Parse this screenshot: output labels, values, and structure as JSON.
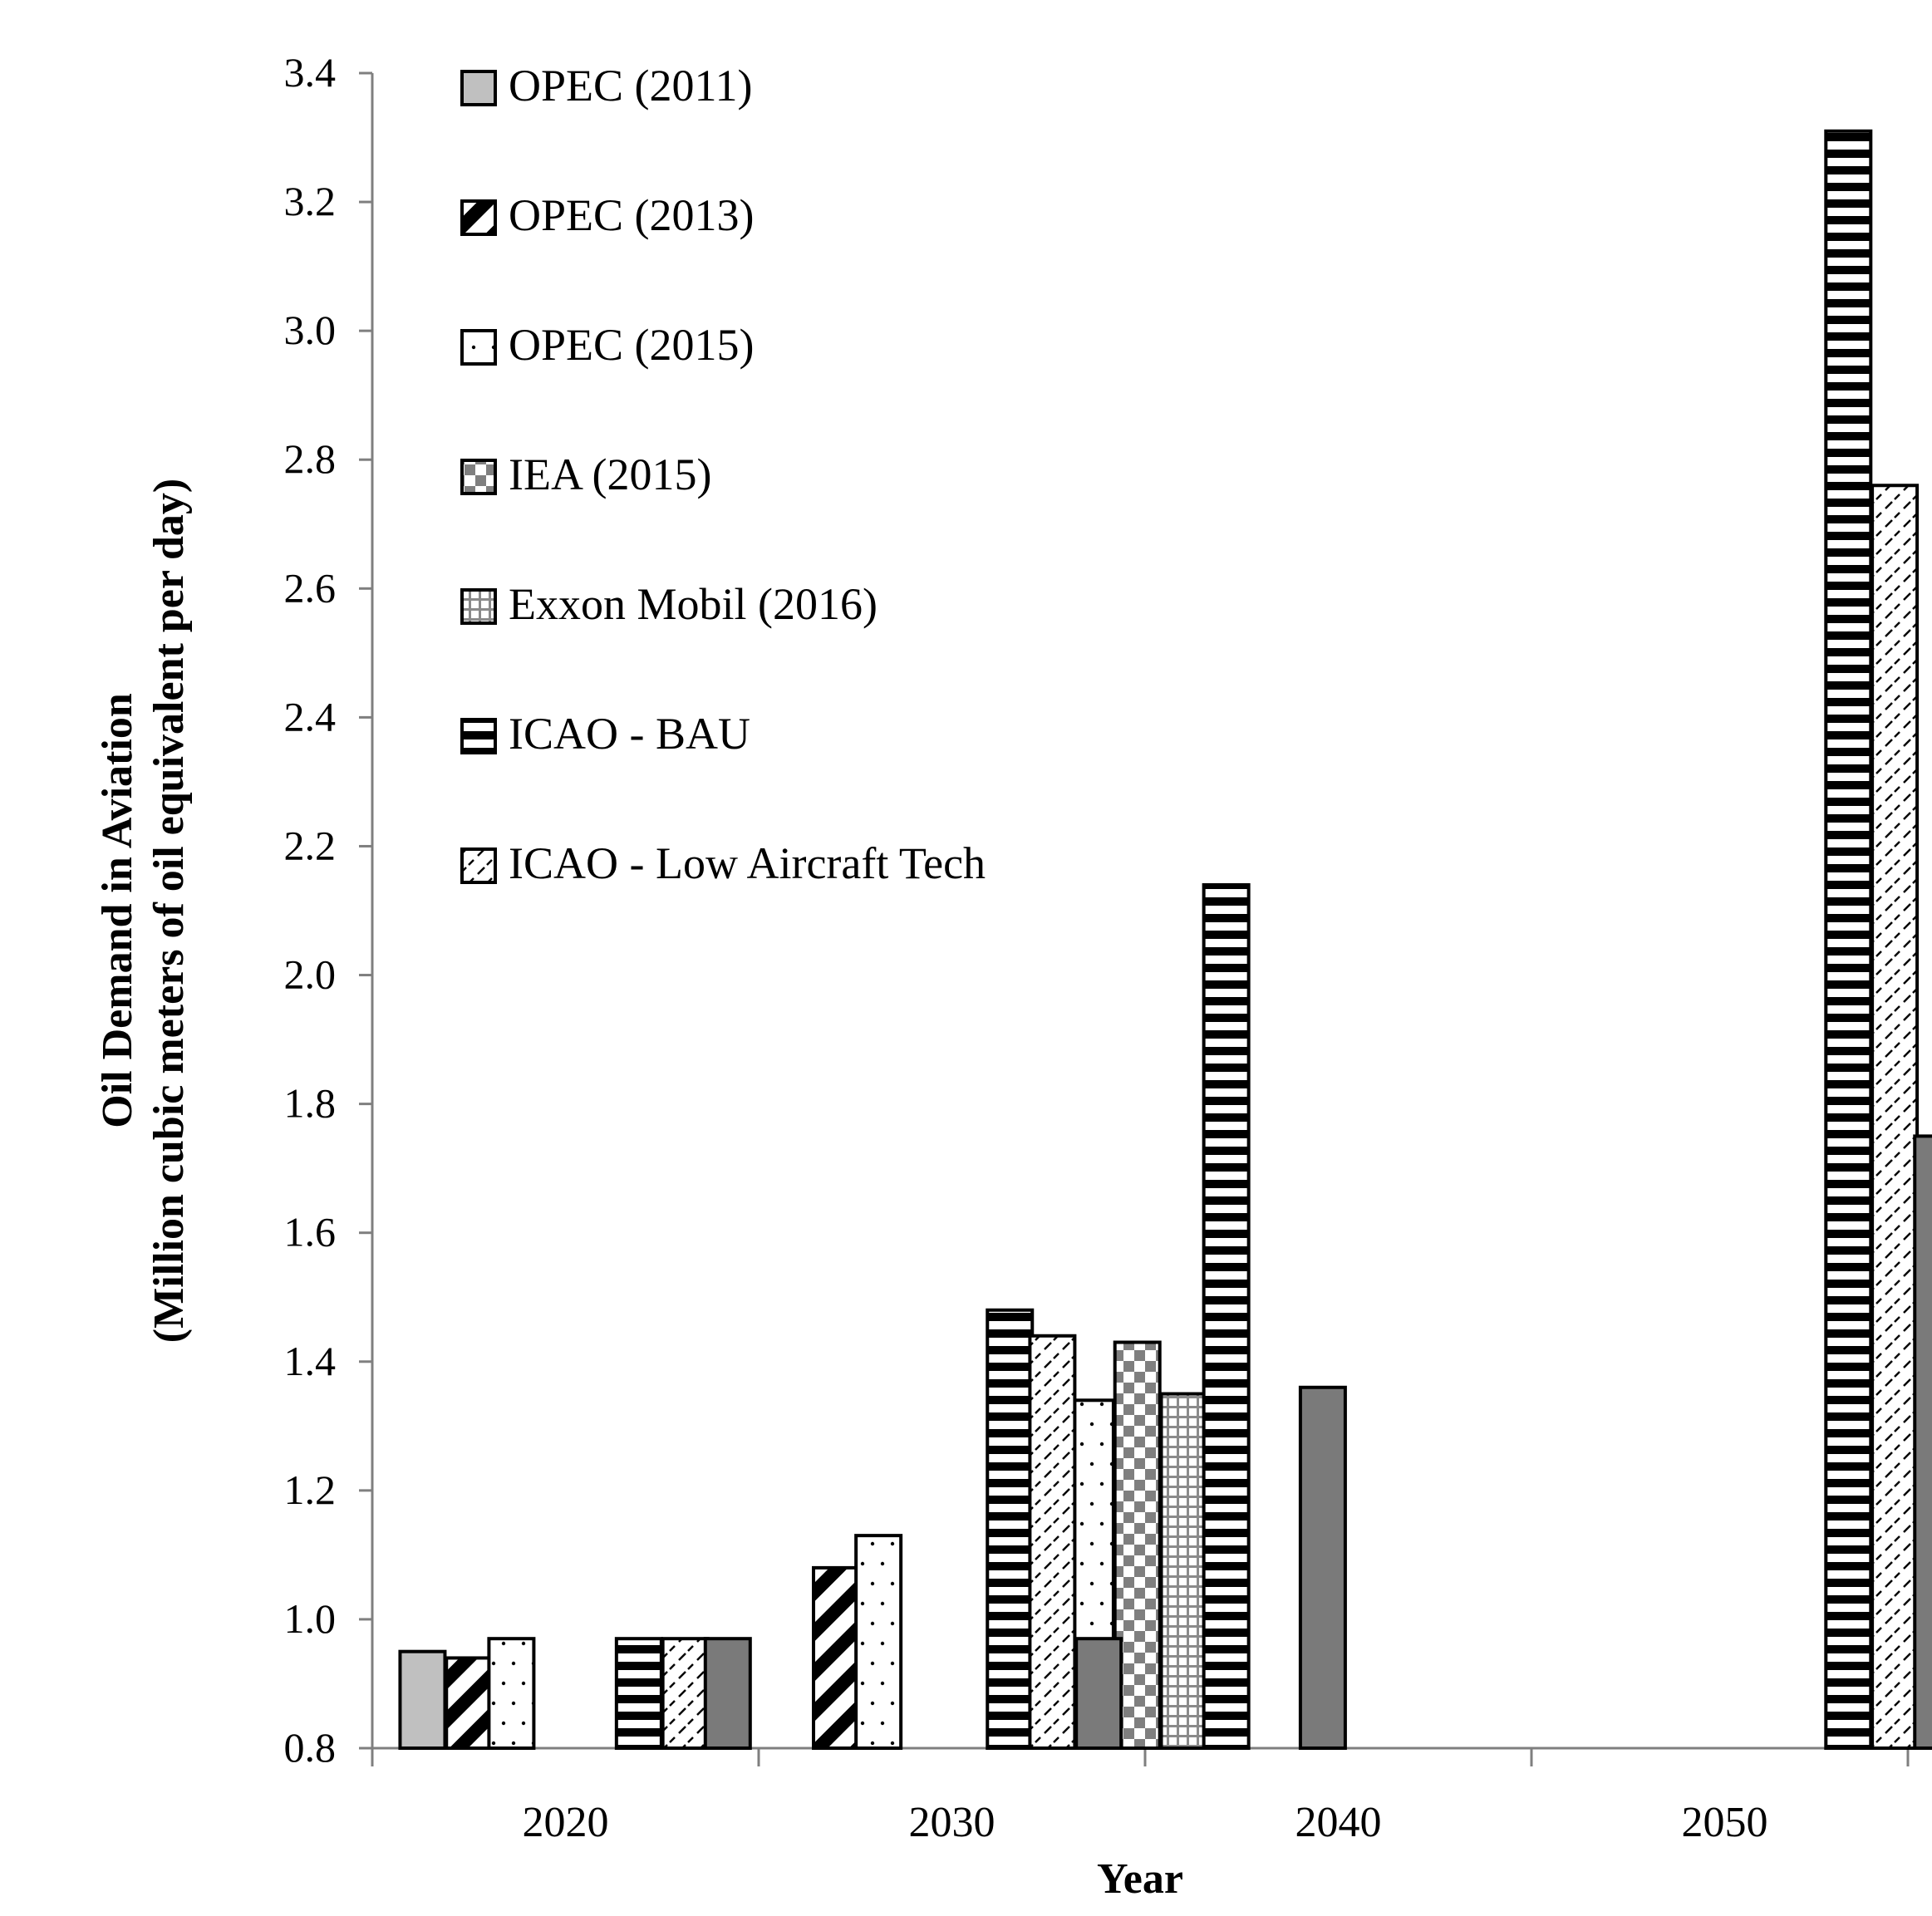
{
  "chart_data": {
    "type": "bar",
    "title": "",
    "xlabel": "Year",
    "ylabel": "Oil Demand in Aviation",
    "ylabel_line2": "(Million cubic meters of oil equivalent per day)",
    "ylim": [
      0.8,
      3.4
    ],
    "yticks": [
      "0.8",
      "1.0",
      "1.2",
      "1.4",
      "1.6",
      "1.8",
      "2.0",
      "2.2",
      "2.4",
      "2.6",
      "2.8",
      "3.0",
      "3.2",
      "3.4"
    ],
    "categories": [
      "2020",
      "2030",
      "2040",
      "2050"
    ],
    "grid": false,
    "legend_position": "top-left",
    "series": [
      {
        "name": "OPEC (2011)",
        "pattern": "solid-gray",
        "points": [
          {
            "x": 2016.3,
            "y": 0.95
          }
        ]
      },
      {
        "name": "OPEC (2013)",
        "pattern": "diagonal",
        "points": [
          {
            "x": 2017.5,
            "y": 0.94
          },
          {
            "x": 2027.0,
            "y": 1.08
          }
        ]
      },
      {
        "name": "OPEC (2015)",
        "pattern": "dots",
        "points": [
          {
            "x": 2018.6,
            "y": 0.97
          },
          {
            "x": 2028.1,
            "y": 1.13
          },
          {
            "x": 2033.6,
            "y": 1.34
          }
        ]
      },
      {
        "name": "IEA (2015)",
        "pattern": "checker",
        "points": [
          {
            "x": 2034.8,
            "y": 1.43
          }
        ]
      },
      {
        "name": "Exxon Mobil (2016)",
        "pattern": "grid",
        "points": [
          {
            "x": 2036.0,
            "y": 1.35
          }
        ]
      },
      {
        "name": "ICAO - BAU",
        "pattern": "horizontal",
        "points": [
          {
            "x": 2021.9,
            "y": 0.97
          },
          {
            "x": 2031.5,
            "y": 1.48
          },
          {
            "x": 2037.1,
            "y": 2.14
          },
          {
            "x": 2053.2,
            "y": 3.31
          }
        ]
      },
      {
        "name": "ICAO - Low Aircraft Tech",
        "pattern": "dashes",
        "points": [
          {
            "x": 2023.1,
            "y": 0.97
          },
          {
            "x": 2032.6,
            "y": 1.44
          },
          {
            "x": 2054.4,
            "y": 2.76
          }
        ]
      },
      {
        "name": "",
        "pattern": "solid-dark",
        "points": [
          {
            "x": 2024.2,
            "y": 0.97
          },
          {
            "x": 2033.8,
            "y": 0.97
          },
          {
            "x": 2039.6,
            "y": 1.36
          },
          {
            "x": 2055.5,
            "y": 1.75
          }
        ]
      }
    ]
  }
}
